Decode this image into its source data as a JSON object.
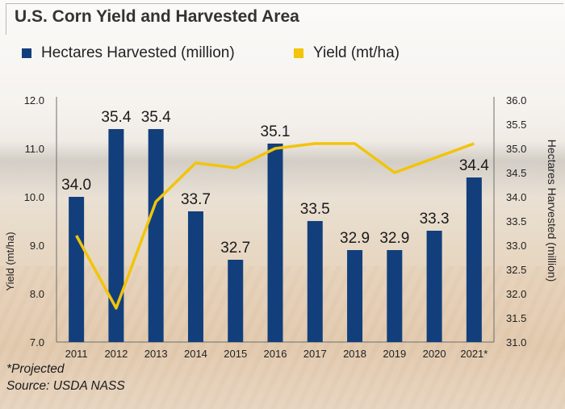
{
  "chart_data": {
    "type": "bar+line",
    "title": "U.S. Corn Yield and Harvested Area",
    "categories": [
      "2011",
      "2012",
      "2013",
      "2014",
      "2015",
      "2016",
      "2017",
      "2018",
      "2019",
      "2020",
      "2021*"
    ],
    "series": [
      {
        "name": "Hectares Harvested (million)",
        "type": "bar",
        "axis": "right",
        "color": "#123f7c",
        "values": [
          34.0,
          35.4,
          35.4,
          33.7,
          32.7,
          35.1,
          33.5,
          32.9,
          32.9,
          33.3,
          34.4
        ],
        "labels": [
          "34.0",
          "35.4",
          "35.4",
          "33.7",
          "32.7",
          "35.1",
          "33.5",
          "32.9",
          "32.9",
          "33.3",
          "34.4"
        ]
      },
      {
        "name": "Yield (mt/ha)",
        "type": "line",
        "axis": "left",
        "color": "#f2c40a",
        "values": [
          9.2,
          7.7,
          9.9,
          10.7,
          10.6,
          11.0,
          11.1,
          11.1,
          10.5,
          10.8,
          11.1
        ]
      }
    ],
    "left_axis": {
      "label": "Yield (mt/ha)",
      "range": [
        7.0,
        12.0
      ],
      "ticks": [
        "7.0",
        "8.0",
        "9.0",
        "10.0",
        "11.0",
        "12.0"
      ]
    },
    "right_axis": {
      "label": "Hectares Harvested (million)",
      "range": [
        31.0,
        36.0
      ],
      "ticks": [
        "31.0",
        "31.5",
        "32.0",
        "32.5",
        "33.0",
        "33.5",
        "34.0",
        "34.5",
        "35.0",
        "35.5",
        "36.0"
      ]
    },
    "grid": false,
    "legend_position": "top-left"
  },
  "legend": [
    {
      "label": "Hectares Harvested (million)",
      "color": "#123f7c"
    },
    {
      "label": "Yield (mt/ha)",
      "color": "#f2c40a"
    }
  ],
  "footnotes": {
    "projected": "*Projected",
    "source": "Source: USDA NASS"
  }
}
